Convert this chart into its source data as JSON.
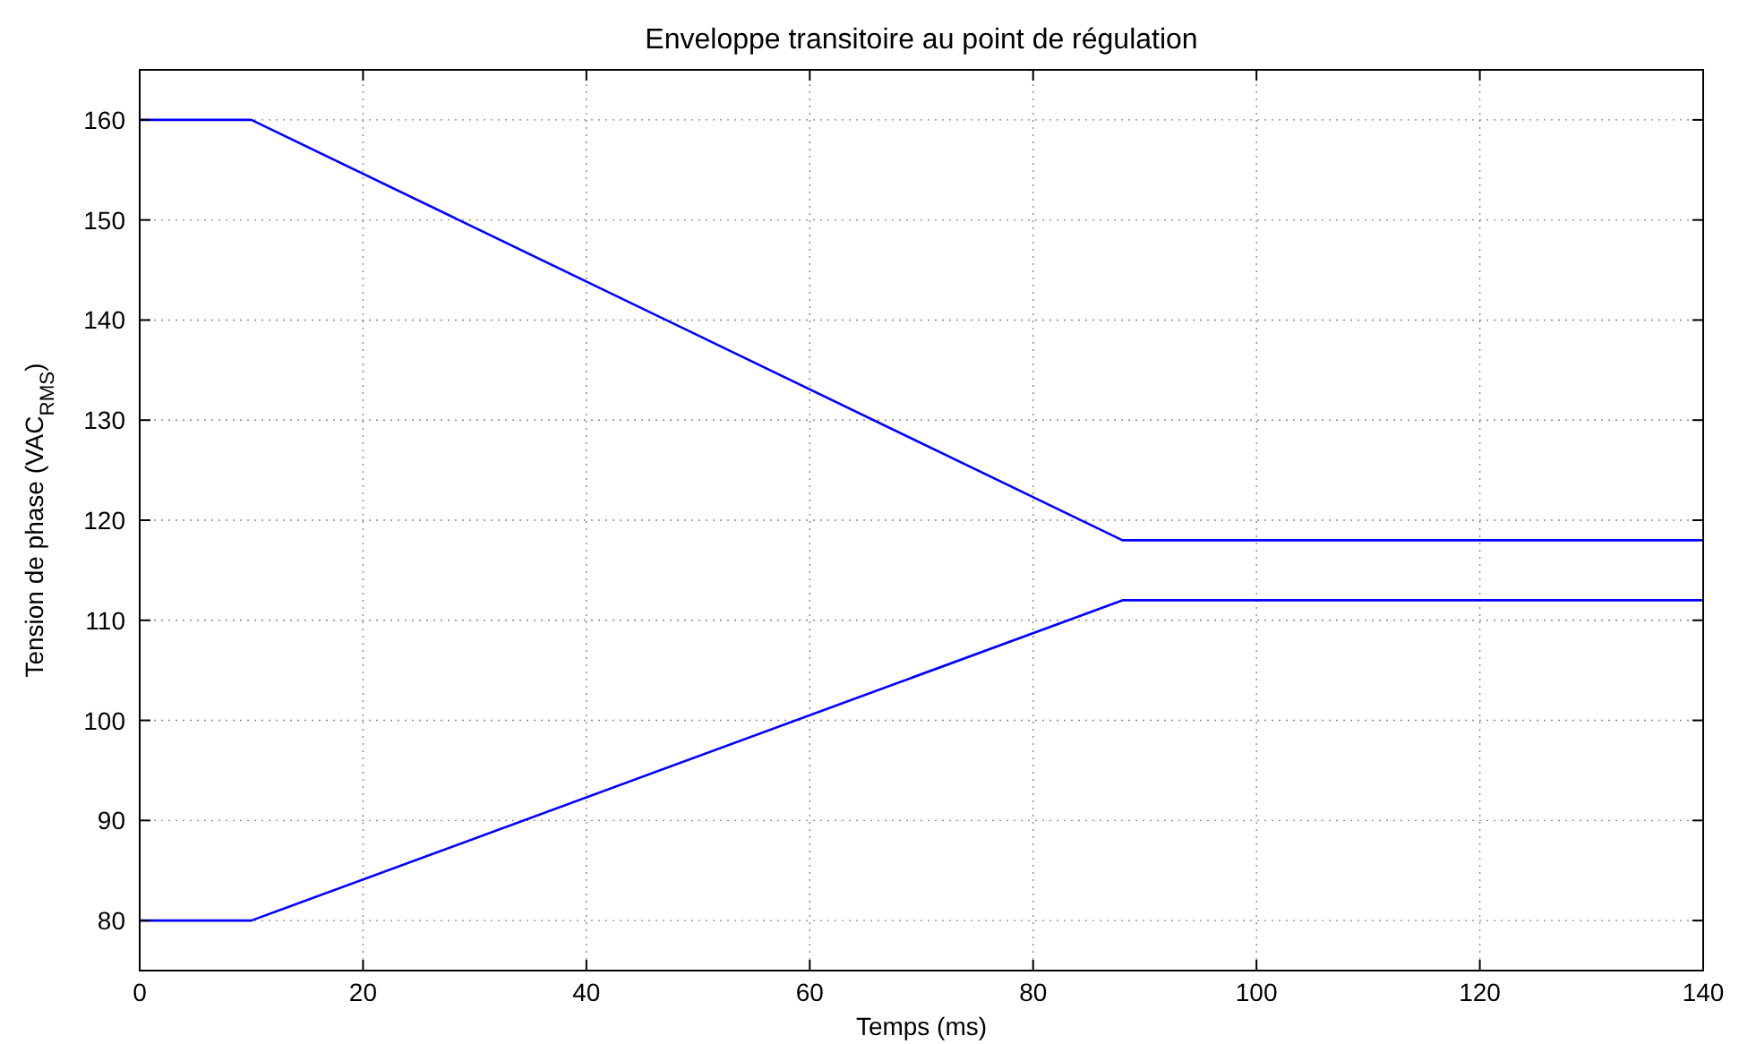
{
  "chart_data": {
    "type": "line",
    "title": "Enveloppe transitoire au point de régulation",
    "xlabel": "Temps (ms)",
    "ylabel": "Tension de phase (VAC$_{RMS}$)",
    "xlim": [
      0,
      140
    ],
    "xticks": [
      0,
      20,
      40,
      60,
      80,
      100,
      120,
      140
    ],
    "ylim": [
      75,
      165
    ],
    "yticks": [
      80,
      90,
      100,
      110,
      120,
      130,
      140,
      150,
      160
    ],
    "grid": true,
    "marker": "none",
    "line_style": "solid",
    "series": [
      {
        "color": "#0000ff",
        "x": [
          0,
          10,
          88,
          140
        ],
        "values": [
          160,
          160,
          118,
          118
        ]
      },
      {
        "color": "#0000ff",
        "x": [
          0,
          10,
          88,
          140
        ],
        "values": [
          80,
          80,
          112,
          112
        ]
      }
    ]
  }
}
